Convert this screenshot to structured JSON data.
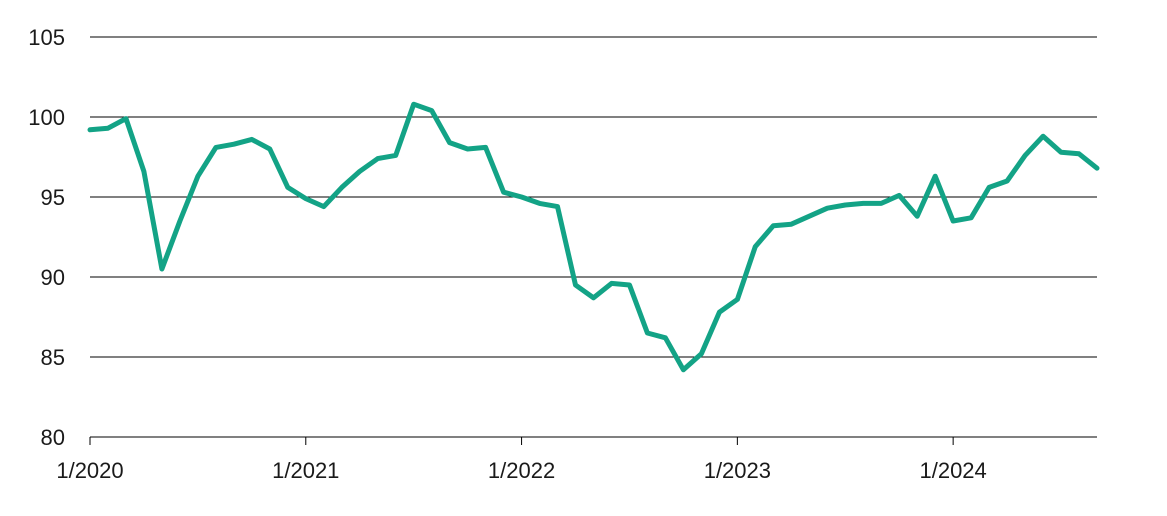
{
  "chart_data": {
    "type": "line",
    "title": "",
    "xlabel": "",
    "ylabel": "",
    "ylim": [
      80,
      105
    ],
    "yticks": [
      "80",
      "85",
      "90",
      "95",
      "100",
      "105"
    ],
    "xlim": [
      "2020-01",
      "2024-09"
    ],
    "xticks": [
      "1/2020",
      "1/2021",
      "1/2022",
      "1/2023",
      "1/2024"
    ],
    "grid": "horizontal",
    "legend": "none",
    "color": "#13a386",
    "series": [
      {
        "x": [
          "2020-01",
          "2020-02",
          "2020-03",
          "2020-04",
          "2020-05",
          "2020-06",
          "2020-07",
          "2020-08",
          "2020-09",
          "2020-10",
          "2020-11",
          "2020-12",
          "2021-01",
          "2021-02",
          "2021-03",
          "2021-04",
          "2021-05",
          "2021-06",
          "2021-07",
          "2021-08",
          "2021-09",
          "2021-10",
          "2021-11",
          "2021-12",
          "2022-01",
          "2022-02",
          "2022-03",
          "2022-04",
          "2022-05",
          "2022-06",
          "2022-07",
          "2022-08",
          "2022-09",
          "2022-10",
          "2022-11",
          "2022-12",
          "2023-01",
          "2023-02",
          "2023-03",
          "2023-04",
          "2023-05",
          "2023-06",
          "2023-07",
          "2023-08",
          "2023-09",
          "2023-10",
          "2023-11",
          "2023-12",
          "2024-01",
          "2024-02",
          "2024-03",
          "2024-04",
          "2024-05",
          "2024-06",
          "2024-07",
          "2024-08",
          "2024-09"
        ],
        "values": [
          99.2,
          99.3,
          99.9,
          96.6,
          90.5,
          93.5,
          96.3,
          98.1,
          98.3,
          98.6,
          98.0,
          95.6,
          94.9,
          94.4,
          95.6,
          96.6,
          97.4,
          97.6,
          100.8,
          100.4,
          98.4,
          98.0,
          98.1,
          95.3,
          95.0,
          94.6,
          94.4,
          89.5,
          88.7,
          89.6,
          89.5,
          86.5,
          86.2,
          84.2,
          85.2,
          87.8,
          88.6,
          91.9,
          93.2,
          93.3,
          93.8,
          94.3,
          94.5,
          94.6,
          94.6,
          95.1,
          93.8,
          96.3,
          93.5,
          93.7,
          95.6,
          96.0,
          97.6,
          98.8,
          97.8,
          97.7,
          96.8
        ]
      }
    ]
  }
}
